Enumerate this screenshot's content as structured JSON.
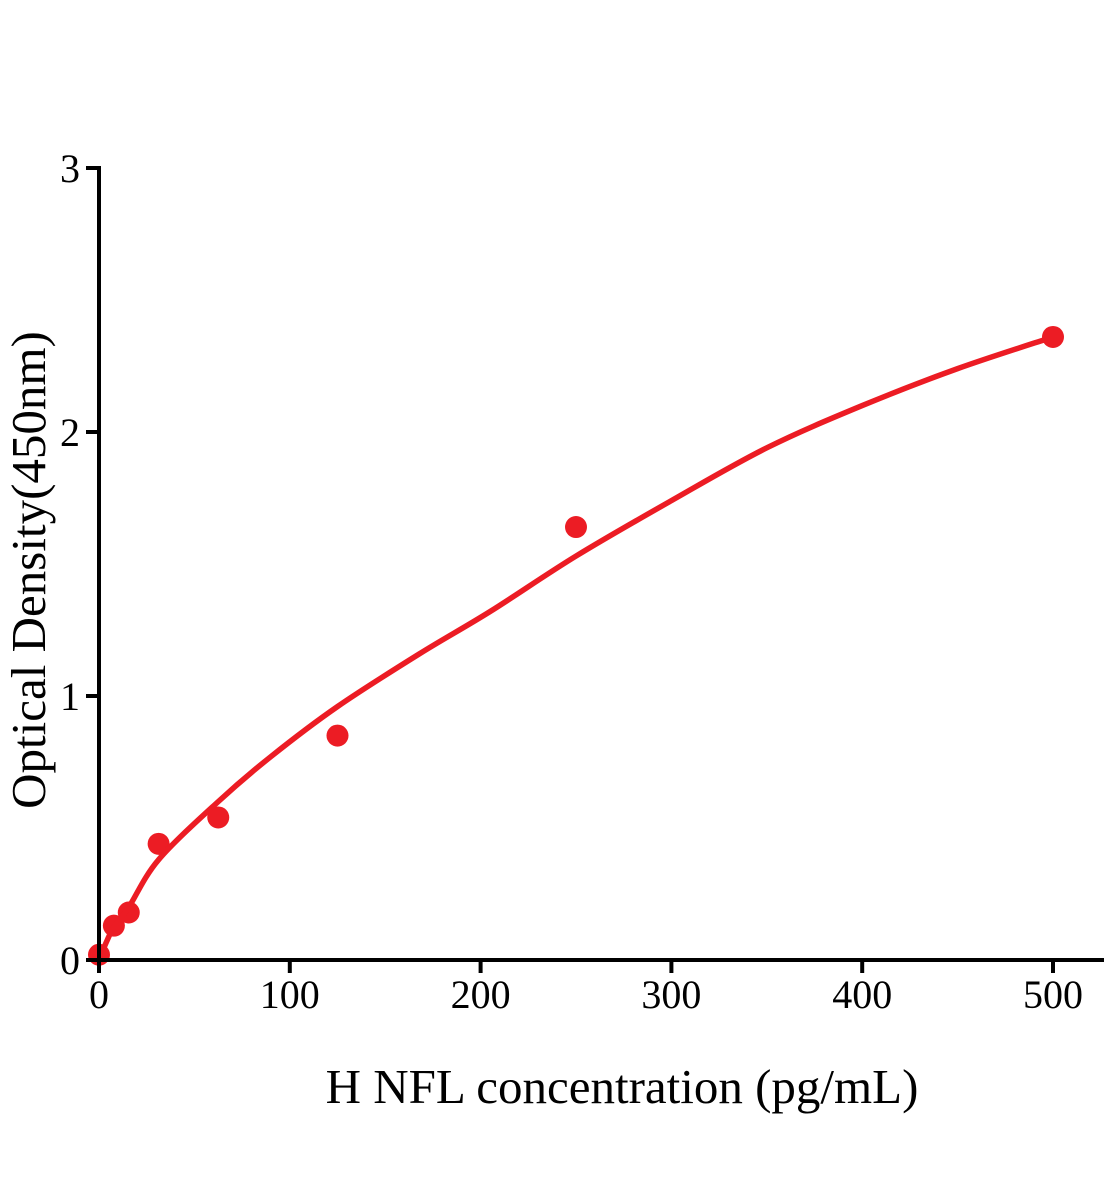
{
  "figure": {
    "background_color": "#ffffff",
    "axis_color": "#000000",
    "accent_red": "#ec1c24"
  },
  "chart_data": {
    "type": "scatter",
    "title": "",
    "xlabel": "H NFL concentration (pg/mL)",
    "ylabel": "Optical Density(450nm)",
    "xlim": [
      0,
      527
    ],
    "ylim": [
      0,
      3
    ],
    "x_ticks": [
      0,
      100,
      200,
      300,
      400,
      500
    ],
    "y_ticks": [
      0,
      1,
      2,
      3
    ],
    "grid": false,
    "legend": "none",
    "series": [
      {
        "name": "standard-points",
        "type": "scatter",
        "color": "#ec1c24",
        "points": [
          {
            "x": 0,
            "y": 0.02
          },
          {
            "x": 7.8,
            "y": 0.13
          },
          {
            "x": 15.6,
            "y": 0.18
          },
          {
            "x": 31.25,
            "y": 0.44
          },
          {
            "x": 62.5,
            "y": 0.54
          },
          {
            "x": 125,
            "y": 0.85
          },
          {
            "x": 250,
            "y": 1.64
          },
          {
            "x": 500,
            "y": 2.36
          }
        ]
      },
      {
        "name": "fit-curve",
        "type": "line",
        "color": "#ec1c24",
        "points": [
          [
            0,
            0
          ],
          [
            4,
            0.07
          ],
          [
            7.8,
            0.125
          ],
          [
            15.6,
            0.2
          ],
          [
            31.25,
            0.38
          ],
          [
            62.5,
            0.6
          ],
          [
            90,
            0.77
          ],
          [
            125,
            0.96
          ],
          [
            168,
            1.16
          ],
          [
            205,
            1.32
          ],
          [
            250,
            1.53
          ],
          [
            300,
            1.74
          ],
          [
            350,
            1.94
          ],
          [
            400,
            2.1
          ],
          [
            450,
            2.24
          ],
          [
            500,
            2.36
          ]
        ]
      }
    ]
  }
}
